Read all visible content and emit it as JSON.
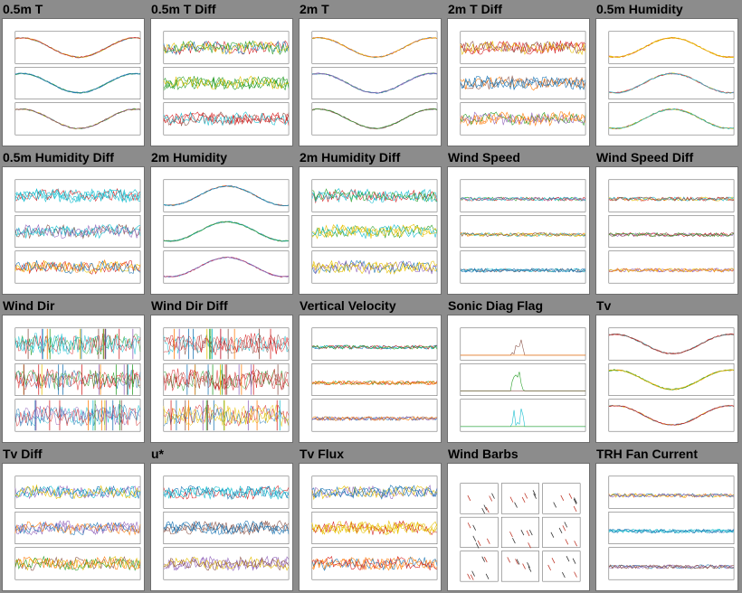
{
  "grid": {
    "tiles": [
      {
        "label": "0.5m T",
        "kind": "smooth"
      },
      {
        "label": "0.5m T Diff",
        "kind": "diff"
      },
      {
        "label": "2m T",
        "kind": "smooth"
      },
      {
        "label": "2m T Diff",
        "kind": "diff"
      },
      {
        "label": "0.5m Humidity",
        "kind": "humidity"
      },
      {
        "label": "0.5m Humidity Diff",
        "kind": "diff"
      },
      {
        "label": "2m Humidity",
        "kind": "humidity"
      },
      {
        "label": "2m Humidity Diff",
        "kind": "diff"
      },
      {
        "label": "Wind Speed",
        "kind": "flat"
      },
      {
        "label": "Wind Speed Diff",
        "kind": "flat"
      },
      {
        "label": "Wind Dir",
        "kind": "dir"
      },
      {
        "label": "Wind Dir Diff",
        "kind": "dir"
      },
      {
        "label": "Vertical Velocity",
        "kind": "flat"
      },
      {
        "label": "Sonic Diag Flag",
        "kind": "flag"
      },
      {
        "label": "Tv",
        "kind": "smooth"
      },
      {
        "label": "Tv Diff",
        "kind": "diff"
      },
      {
        "label": "u*",
        "kind": "noisy"
      },
      {
        "label": "Tv Flux",
        "kind": "noisy"
      },
      {
        "label": "Wind Barbs",
        "kind": "barbs"
      },
      {
        "label": "TRH Fan Current",
        "kind": "flat"
      }
    ]
  },
  "colors": {
    "page_bg": "#8c8c8c",
    "thumb_bg": "#ffffff",
    "series": [
      "#d62728",
      "#1f77b4",
      "#2ca02c",
      "#ff7f0e",
      "#9467bd",
      "#8c564b",
      "#e6c000",
      "#17becf"
    ]
  }
}
